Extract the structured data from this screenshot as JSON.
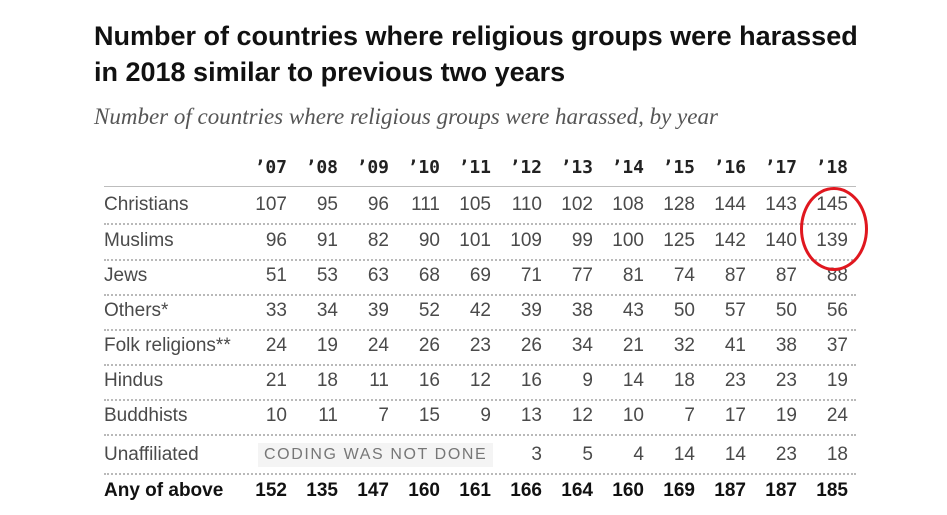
{
  "title": "Number of countries where religious groups were harassed in 2018 similar to previous two years",
  "subtitle": "Number of countries where religious groups were harassed, by year",
  "highlight_color": "#e0171f",
  "chart_data": {
    "type": "table",
    "columns": [
      "’07",
      "’08",
      "’09",
      "’10",
      "’11",
      "’12",
      "’13",
      "’14",
      "’15",
      "’16",
      "’17",
      "’18"
    ],
    "rows": [
      {
        "label": "Christians",
        "values": [
          107,
          95,
          96,
          111,
          105,
          110,
          102,
          108,
          128,
          144,
          143,
          145
        ]
      },
      {
        "label": "Muslims",
        "values": [
          96,
          91,
          82,
          90,
          101,
          109,
          99,
          100,
          125,
          142,
          140,
          139
        ]
      },
      {
        "label": "Jews",
        "values": [
          51,
          53,
          63,
          68,
          69,
          71,
          77,
          81,
          74,
          87,
          87,
          88
        ]
      },
      {
        "label": "Others*",
        "values": [
          33,
          34,
          39,
          52,
          42,
          39,
          38,
          43,
          50,
          57,
          50,
          56
        ]
      },
      {
        "label": "Folk religions**",
        "values": [
          24,
          19,
          24,
          26,
          23,
          26,
          34,
          21,
          32,
          41,
          38,
          37
        ]
      },
      {
        "label": "Hindus",
        "values": [
          21,
          18,
          11,
          16,
          12,
          16,
          9,
          14,
          18,
          23,
          23,
          19
        ]
      },
      {
        "label": "Buddhists",
        "values": [
          10,
          11,
          7,
          15,
          9,
          13,
          12,
          10,
          7,
          17,
          19,
          24
        ]
      },
      {
        "label": "Unaffiliated",
        "values": [
          null,
          null,
          null,
          null,
          null,
          3,
          5,
          4,
          14,
          14,
          23,
          18
        ],
        "note": "CODING WAS NOT DONE"
      },
      {
        "label": "Any of above",
        "values": [
          152,
          135,
          147,
          160,
          161,
          166,
          164,
          160,
          169,
          187,
          187,
          185
        ],
        "bold": true
      }
    ],
    "highlighted": {
      "column": "’18",
      "rows": [
        "Christians",
        "Muslims"
      ]
    }
  }
}
